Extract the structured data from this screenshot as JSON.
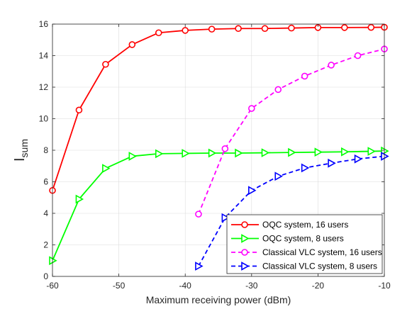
{
  "chart_data": {
    "type": "line",
    "xlabel": "Maximum receiving power (dBm)",
    "ylabel_main": "I",
    "ylabel_sub": "sum",
    "xlim": [
      -60,
      -10
    ],
    "ylim": [
      0,
      16
    ],
    "xticks": [
      -60,
      -50,
      -40,
      -30,
      -20,
      -10
    ],
    "yticks": [
      0,
      2,
      4,
      6,
      8,
      10,
      12,
      14,
      16
    ],
    "grid": true,
    "legend_position": "bottom-right",
    "series": [
      {
        "name": "OQC system, 16 users",
        "color": "#ff0000",
        "line": "solid",
        "marker": "circle",
        "x": [
          -60,
          -56,
          -52,
          -48,
          -44,
          -40,
          -36,
          -32,
          -28,
          -24,
          -20,
          -16,
          -12,
          -10
        ],
        "y": [
          5.45,
          10.55,
          13.45,
          14.7,
          15.45,
          15.6,
          15.68,
          15.72,
          15.72,
          15.75,
          15.78,
          15.78,
          15.79,
          15.8
        ]
      },
      {
        "name": "OQC system, 8 users",
        "color": "#00ff00",
        "line": "solid",
        "marker": "triangle-right",
        "x": [
          -60,
          -56,
          -52,
          -48,
          -44,
          -40,
          -36,
          -32,
          -28,
          -24,
          -20,
          -16,
          -12,
          -10
        ],
        "y": [
          1.0,
          4.9,
          6.85,
          7.62,
          7.78,
          7.8,
          7.82,
          7.82,
          7.84,
          7.86,
          7.88,
          7.9,
          7.93,
          7.95
        ]
      },
      {
        "name": "Classical VLC system, 16 users",
        "color": "#ff00ff",
        "line": "dashed",
        "marker": "circle",
        "x": [
          -38,
          -34,
          -30,
          -26,
          -22,
          -18,
          -14,
          -10
        ],
        "y": [
          3.95,
          8.1,
          10.65,
          11.85,
          12.7,
          13.4,
          14.0,
          14.42
        ]
      },
      {
        "name": "Classical VLC system, 8 users",
        "color": "#0000ff",
        "line": "dashed",
        "marker": "triangle-right",
        "x": [
          -38,
          -34,
          -30,
          -26,
          -22,
          -18,
          -14,
          -10
        ],
        "y": [
          0.65,
          3.72,
          5.45,
          6.35,
          6.88,
          7.18,
          7.45,
          7.62
        ]
      }
    ]
  }
}
